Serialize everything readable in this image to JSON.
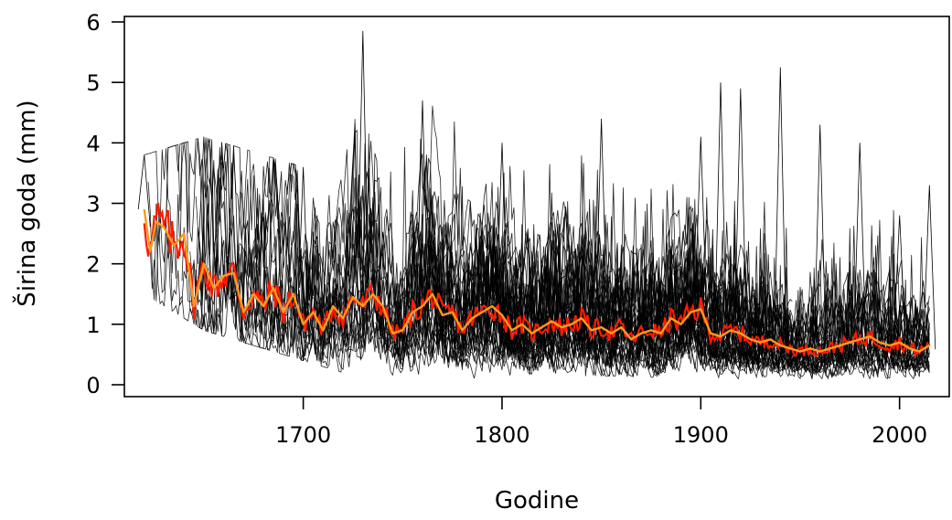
{
  "chart_data": {
    "type": "line",
    "title": "",
    "xlabel": "Godine",
    "ylabel": "Širina goda (mm)",
    "xlim": [
      1610,
      2025
    ],
    "ylim": [
      0,
      6
    ],
    "x_ticks": [
      1700,
      1800,
      1900,
      2000
    ],
    "x_tick_labels": [
      "1700",
      "1800",
      "1900",
      "2000"
    ],
    "y_ticks": [
      0,
      1,
      2,
      3,
      4,
      5,
      6
    ],
    "y_tick_labels": [
      "0",
      "1",
      "2",
      "3",
      "4",
      "5",
      "6"
    ],
    "grid": false,
    "legend": "none",
    "colors": {
      "individual_series": "#000000",
      "mean_series": "#ff1a00",
      "smoothed_mean": "#ff9a1f"
    },
    "mean_chronology": {
      "x": [
        1620,
        1623,
        1626,
        1630,
        1635,
        1640,
        1645,
        1650,
        1655,
        1660,
        1665,
        1670,
        1675,
        1680,
        1685,
        1690,
        1695,
        1700,
        1705,
        1710,
        1715,
        1720,
        1725,
        1730,
        1735,
        1740,
        1745,
        1750,
        1755,
        1760,
        1765,
        1770,
        1775,
        1780,
        1785,
        1790,
        1795,
        1800,
        1805,
        1810,
        1815,
        1820,
        1825,
        1830,
        1835,
        1840,
        1845,
        1850,
        1855,
        1860,
        1865,
        1870,
        1875,
        1880,
        1885,
        1890,
        1895,
        1900,
        1905,
        1910,
        1915,
        1920,
        1925,
        1930,
        1935,
        1940,
        1945,
        1950,
        1955,
        1960,
        1965,
        1970,
        1975,
        1980,
        1985,
        1990,
        1995,
        2000,
        2005,
        2010,
        2015
      ],
      "y": [
        2.9,
        2.2,
        2.7,
        2.6,
        2.3,
        2.5,
        1.3,
        2.0,
        1.6,
        1.8,
        1.85,
        1.2,
        1.5,
        1.3,
        1.6,
        1.2,
        1.5,
        1.0,
        1.2,
        0.9,
        1.3,
        1.1,
        1.45,
        1.3,
        1.5,
        1.3,
        0.85,
        0.9,
        1.2,
        1.3,
        1.5,
        1.15,
        1.2,
        0.9,
        1.1,
        1.2,
        1.3,
        1.15,
        0.9,
        1.0,
        0.85,
        0.95,
        1.05,
        0.95,
        1.0,
        1.1,
        0.9,
        0.95,
        0.85,
        0.95,
        0.75,
        0.85,
        0.9,
        0.85,
        1.1,
        1.0,
        1.2,
        1.25,
        0.85,
        0.8,
        0.9,
        0.85,
        0.75,
        0.7,
        0.75,
        0.65,
        0.6,
        0.55,
        0.6,
        0.55,
        0.6,
        0.65,
        0.7,
        0.75,
        0.8,
        0.7,
        0.65,
        0.7,
        0.6,
        0.55,
        0.65
      ]
    },
    "individual_series_estimate": {
      "count": 45,
      "envelope_x": [
        1620,
        1650,
        1700,
        1730,
        1760,
        1800,
        1850,
        1900,
        1910,
        1920,
        1940,
        1960,
        1980,
        2000,
        2015
      ],
      "envelope_low": [
        1.5,
        0.9,
        0.4,
        0.1,
        0.05,
        0.1,
        0.15,
        0.1,
        0.1,
        0.1,
        0.05,
        0.1,
        0.1,
        0.1,
        0.1
      ],
      "envelope_high": [
        3.8,
        4.1,
        3.6,
        5.85,
        4.7,
        4.0,
        4.4,
        4.1,
        5.0,
        4.9,
        5.25,
        4.3,
        4.0,
        2.8,
        3.3
      ]
    }
  }
}
